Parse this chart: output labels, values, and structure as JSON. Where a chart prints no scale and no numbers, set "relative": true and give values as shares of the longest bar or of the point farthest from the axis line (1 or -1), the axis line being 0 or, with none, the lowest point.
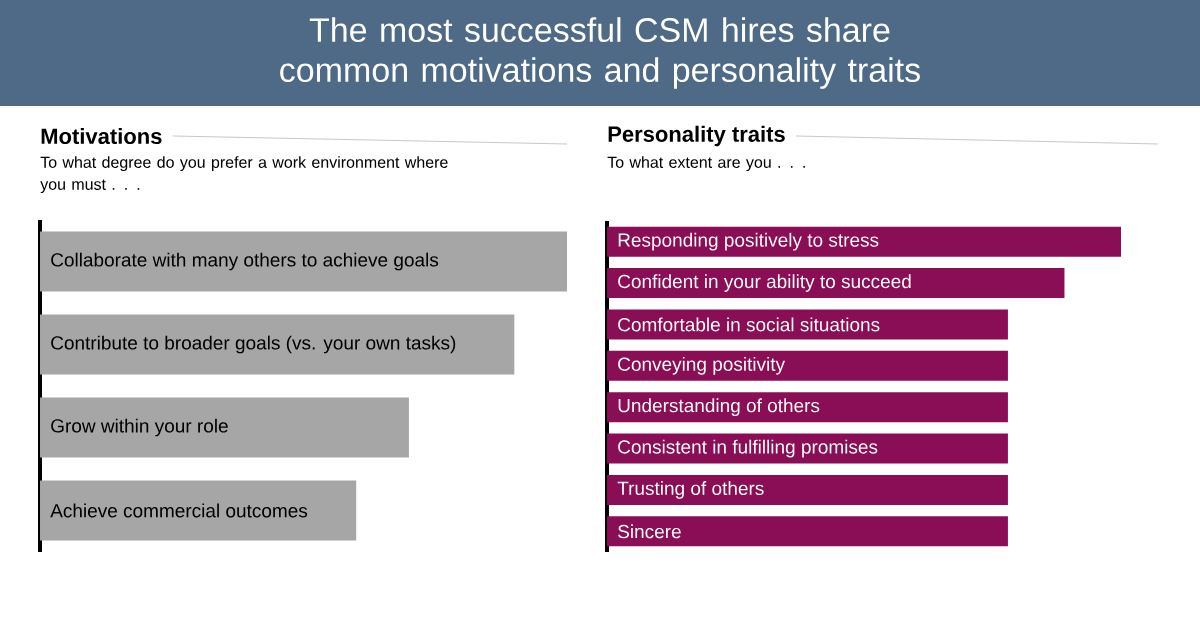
{
  "chart_data": [
    {
      "type": "bar",
      "orientation": "horizontal",
      "relative": true,
      "annotations": [
        "The most successful CSM hires share common motivations and personality traits"
      ],
      "title": "Motivations",
      "subtitle": "To what degree do you prefer a work environment where you must . . .",
      "categories": [
        "Collaborate with many others to achieve goals",
        "Contribute to broader goals (vs. your own tasks)",
        "Grow within your role",
        "Achieve commercial outcomes"
      ],
      "values": [
        1,
        0.9,
        0.7,
        0.6
      ],
      "color": "#a6a6a6"
    },
    {
      "type": "bar",
      "orientation": "horizontal",
      "relative": true,
      "title": "Personality traits",
      "subtitle": "To what extent are you . . .",
      "categories": [
        "Responding positively to stress",
        "Confident in your ability to succeed",
        "Comfortable in social situations",
        "Conveying positivity",
        "Understanding of others",
        "Consistent in fulfilling promises",
        "Trusting of others",
        "Sincere"
      ],
      "values": [
        1,
        0.89,
        0.78,
        0.78,
        0.78,
        0.78,
        0.78,
        0.78
      ],
      "color": "#8a0e56"
    }
  ]
}
